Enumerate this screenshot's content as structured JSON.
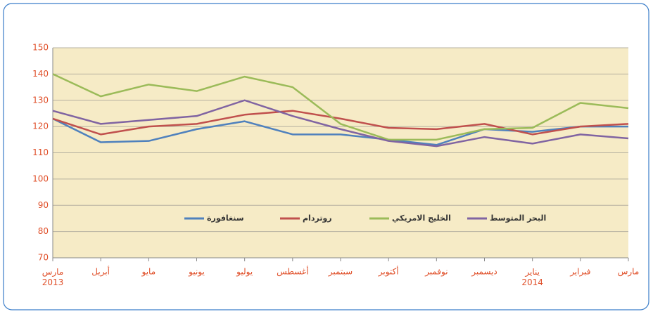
{
  "chart_data": {
    "type": "line",
    "categories": [
      "مارس\n2013",
      "أبريل",
      "مايو",
      "يونيو",
      "يوليو",
      "أغسطس",
      "سبتمبر",
      "أكتوبر",
      "نوفمبر",
      "ديسمبر",
      "يناير\n2014",
      "فبراير",
      "مارس"
    ],
    "series": [
      {
        "name": "سنغافورة",
        "color": "#4f81bd",
        "values": [
          123,
          114,
          114.5,
          119,
          122,
          117,
          117,
          115,
          113,
          119,
          118,
          120,
          120
        ]
      },
      {
        "name": "روتردام",
        "color": "#c0504d",
        "values": [
          123,
          117,
          120,
          121,
          124.5,
          126,
          123,
          119.5,
          119,
          121,
          117,
          120,
          121
        ]
      },
      {
        "name": "الخليج الامريكي",
        "color": "#9bbb59",
        "values": [
          140,
          131.5,
          136,
          133.5,
          139,
          135,
          121,
          115,
          115,
          119,
          119.5,
          129,
          127
        ]
      },
      {
        "name": "البحر المتوسط",
        "color": "#8064a2",
        "values": [
          126,
          121,
          122.5,
          124,
          130,
          124,
          119,
          114.5,
          112.5,
          116,
          113.5,
          117,
          115.5
        ]
      }
    ],
    "ylim": [
      70,
      150
    ],
    "yticks": [
      70,
      80,
      90,
      100,
      110,
      120,
      130,
      140,
      150
    ],
    "grid": true
  }
}
